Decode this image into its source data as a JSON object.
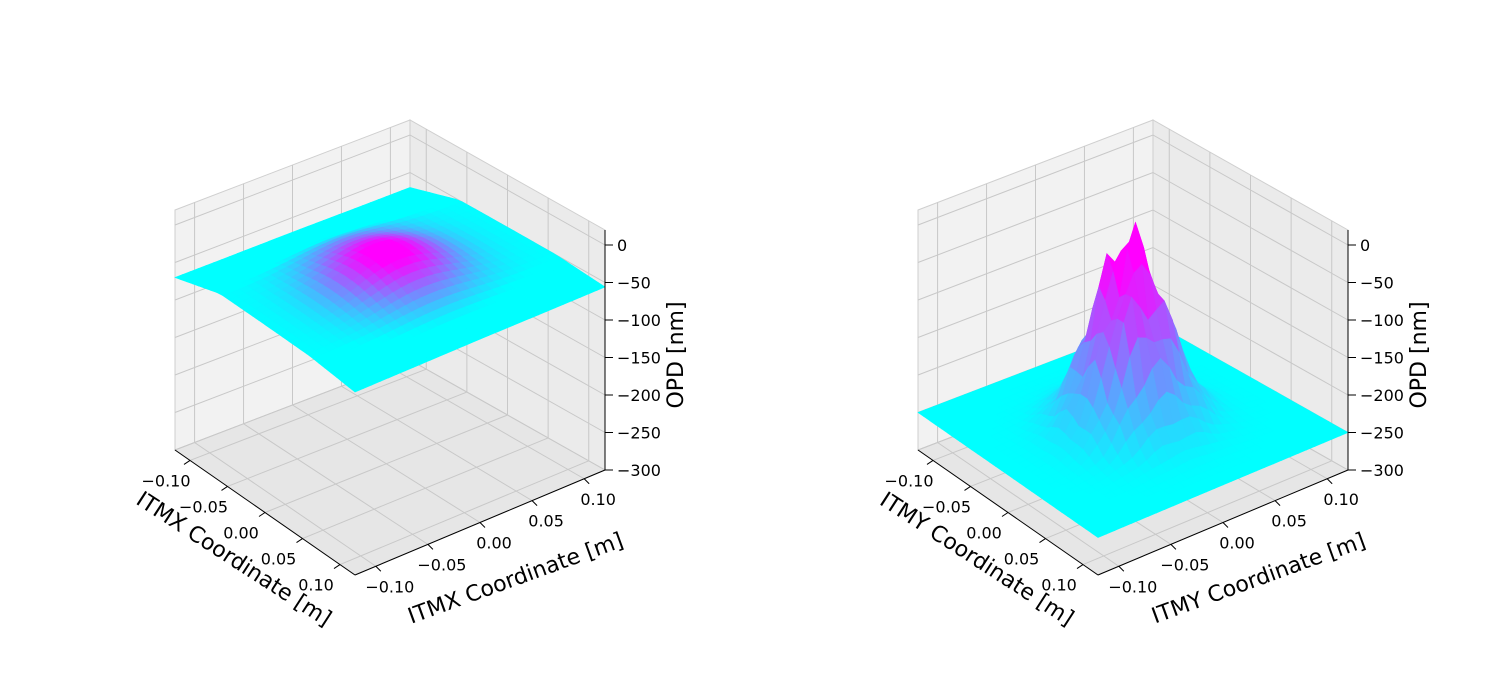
{
  "colors": {
    "surface_low": "#00ffff",
    "surface_high": "#ff00ff",
    "pane_left": "#f2f2f2",
    "pane_right": "#ebebeb",
    "pane_floor": "#e6e6e6",
    "grid": "#c8c8c8"
  },
  "chart_data": [
    {
      "type": "surface3d",
      "colormap": "cool",
      "xlabel": "ITMX Coordinate [m]",
      "ylabel": "ITMX Coordinate [m]",
      "zlabel": "OPD [nm]",
      "xticks": [
        "−0.10",
        "−0.05",
        "0.00",
        "0.05",
        "0.10"
      ],
      "yticks": [
        "−0.10",
        "−0.05",
        "0.00",
        "0.05",
        "0.10"
      ],
      "zticks": [
        "−300",
        "−250",
        "−200",
        "−150",
        "−100",
        "−50",
        "0"
      ],
      "xlim": [
        -0.12,
        0.12
      ],
      "ylim": [
        -0.12,
        0.12
      ],
      "zlim": [
        -300,
        20
      ],
      "grid": true,
      "surface": {
        "baseline_nm": -50,
        "peak_nm": -15,
        "peak_width_m": 0.04,
        "edge_droop_nm": -20,
        "ripple_nm": 0
      }
    },
    {
      "type": "surface3d",
      "colormap": "cool",
      "xlabel": "ITMY Coordinate [m]",
      "ylabel": "ITMY Coordinate [m]",
      "zlabel": "OPD [nm]",
      "xticks": [
        "−0.10",
        "−0.05",
        "0.00",
        "0.05",
        "0.10"
      ],
      "yticks": [
        "−0.10",
        "−0.05",
        "0.00",
        "0.05",
        "0.10"
      ],
      "zticks": [
        "−300",
        "−250",
        "−200",
        "−150",
        "−100",
        "−50",
        "0"
      ],
      "xlim": [
        -0.12,
        0.12
      ],
      "ylim": [
        -0.12,
        0.12
      ],
      "zlim": [
        -300,
        20
      ],
      "grid": true,
      "surface": {
        "baseline_nm": -250,
        "peak_nm": -5,
        "peak_width_m": 0.03,
        "edge_droop_nm": 0,
        "ripple_nm": 40
      }
    }
  ]
}
